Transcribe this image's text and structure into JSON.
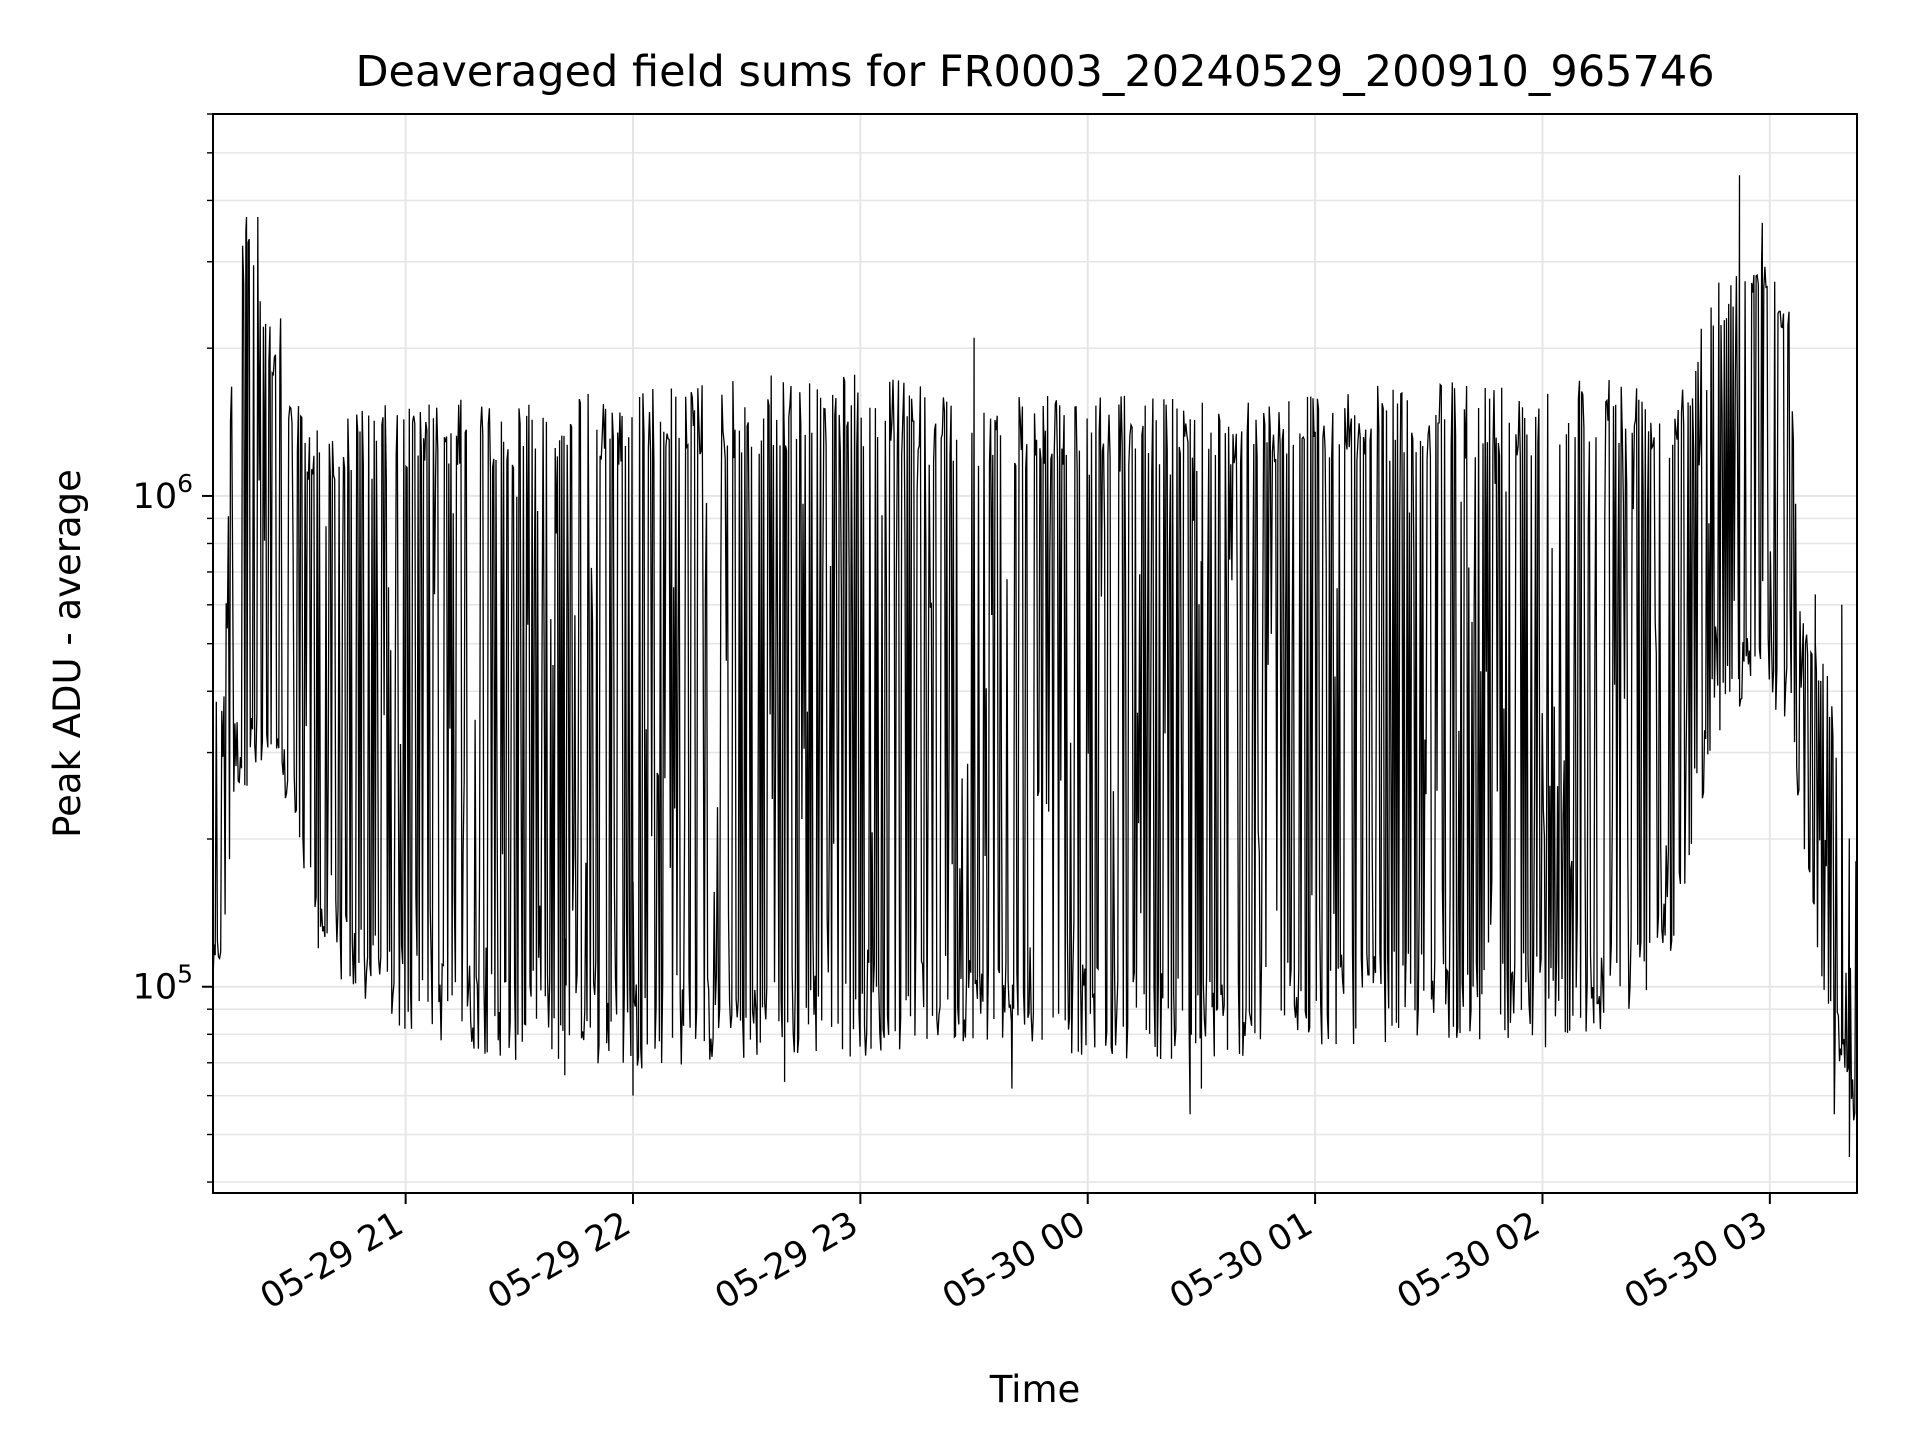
{
  "chart_data": {
    "type": "line",
    "title": "Deaveraged field sums for FR0003_20240529_200910_965746",
    "xlabel": "Time",
    "ylabel": "Peak ADU - average",
    "yscale": "log",
    "xlim": [
      "2024-05-29 20:09:10",
      "2024-05-30 03:23:00"
    ],
    "ylim": [
      38000,
      6000000
    ],
    "x_ticks": [
      {
        "label": "05-29 21",
        "value": "2024-05-29 21:00"
      },
      {
        "label": "05-29 22",
        "value": "2024-05-29 22:00"
      },
      {
        "label": "05-29 23",
        "value": "2024-05-29 23:00"
      },
      {
        "label": "05-30 00",
        "value": "2024-05-30 00:00"
      },
      {
        "label": "05-30 01",
        "value": "2024-05-30 01:00"
      },
      {
        "label": "05-30 02",
        "value": "2024-05-30 02:00"
      },
      {
        "label": "05-30 03",
        "value": "2024-05-30 03:00"
      }
    ],
    "y_ticks": [
      {
        "base": "10",
        "exp": "5",
        "value": 100000
      },
      {
        "base": "10",
        "exp": "6",
        "value": 1000000
      }
    ],
    "grid": true,
    "line_color": "#000000",
    "grid_color": "#e6e6e6",
    "envelope": [
      {
        "t": "2024-05-29 20:09",
        "low": 95000,
        "high": 470000
      },
      {
        "t": "2024-05-29 20:12",
        "low": 120000,
        "high": 400000
      },
      {
        "t": "2024-05-29 20:15",
        "low": 250000,
        "high": 3800000
      },
      {
        "t": "2024-05-29 20:20",
        "low": 260000,
        "high": 3500000
      },
      {
        "t": "2024-05-29 20:25",
        "low": 240000,
        "high": 2200000
      },
      {
        "t": "2024-05-29 20:30",
        "low": 230000,
        "high": 1600000
      },
      {
        "t": "2024-05-29 20:35",
        "low": 125000,
        "high": 1400000
      },
      {
        "t": "2024-05-29 20:45",
        "low": 95000,
        "high": 1500000
      },
      {
        "t": "2024-05-29 21:00",
        "low": 80000,
        "high": 1550000
      },
      {
        "t": "2024-05-29 21:30",
        "low": 70000,
        "high": 1600000
      },
      {
        "t": "2024-05-29 22:00",
        "low": 68000,
        "high": 1650000
      },
      {
        "t": "2024-05-29 22:30",
        "low": 70000,
        "high": 1750000
      },
      {
        "t": "2024-05-29 23:00",
        "low": 72000,
        "high": 1800000
      },
      {
        "t": "2024-05-29 23:30",
        "low": 78000,
        "high": 1600000
      },
      {
        "t": "2024-05-30 00:00",
        "low": 72000,
        "high": 1600000
      },
      {
        "t": "2024-05-30 00:30",
        "low": 70000,
        "high": 1600000
      },
      {
        "t": "2024-05-30 01:00",
        "low": 75000,
        "high": 1650000
      },
      {
        "t": "2024-05-30 01:30",
        "low": 78000,
        "high": 1700000
      },
      {
        "t": "2024-05-30 02:00",
        "low": 75000,
        "high": 1750000
      },
      {
        "t": "2024-05-30 02:20",
        "low": 80000,
        "high": 1800000
      },
      {
        "t": "2024-05-30 02:35",
        "low": 120000,
        "high": 1600000
      },
      {
        "t": "2024-05-30 02:45",
        "low": 300000,
        "high": 2800000
      },
      {
        "t": "2024-05-30 02:55",
        "low": 400000,
        "high": 3300000
      },
      {
        "t": "2024-05-30 03:05",
        "low": 350000,
        "high": 2500000
      },
      {
        "t": "2024-05-30 03:08",
        "low": 200000,
        "high": 600000
      },
      {
        "t": "2024-05-30 03:15",
        "low": 90000,
        "high": 450000
      },
      {
        "t": "2024-05-30 03:23",
        "low": 50000,
        "high": 180000
      }
    ],
    "spikes": [
      {
        "t": "2024-05-29 20:18",
        "value": 3700000
      },
      {
        "t": "2024-05-29 20:21",
        "value": 3700000
      },
      {
        "t": "2024-05-29 20:27",
        "value": 2300000
      },
      {
        "t": "2024-05-29 21:42",
        "value": 66000
      },
      {
        "t": "2024-05-29 22:00",
        "value": 60000
      },
      {
        "t": "2024-05-29 22:40",
        "value": 64000
      },
      {
        "t": "2024-05-29 23:30",
        "value": 2100000
      },
      {
        "t": "2024-05-29 23:40",
        "value": 62000
      },
      {
        "t": "2024-05-30 00:27",
        "value": 55000
      },
      {
        "t": "2024-05-30 00:30",
        "value": 62000
      },
      {
        "t": "2024-05-30 02:52",
        "value": 4500000
      },
      {
        "t": "2024-05-30 02:58",
        "value": 3600000
      },
      {
        "t": "2024-05-30 03:12",
        "value": 630000
      },
      {
        "t": "2024-05-30 03:17",
        "value": 55000
      },
      {
        "t": "2024-05-30 03:19",
        "value": 600000
      },
      {
        "t": "2024-05-30 03:21",
        "value": 45000
      }
    ]
  }
}
